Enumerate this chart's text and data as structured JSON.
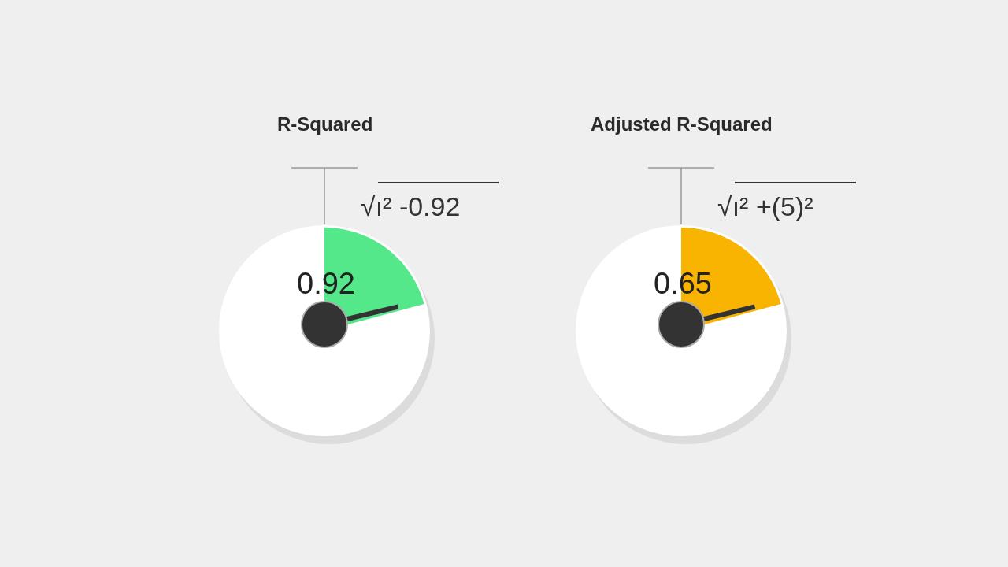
{
  "chart_data": [
    {
      "type": "other",
      "title": "R-Squared",
      "values": [
        0.92
      ],
      "data_labels": true,
      "color": "#55e88a",
      "annotations": [
        "√ı² -0.92"
      ]
    },
    {
      "type": "other",
      "title": "Adjusted R-Squared",
      "values": [
        0.65
      ],
      "data_labels": true,
      "color": "#f8b400",
      "annotations": [
        "√ı² +(5)²"
      ]
    }
  ]
}
